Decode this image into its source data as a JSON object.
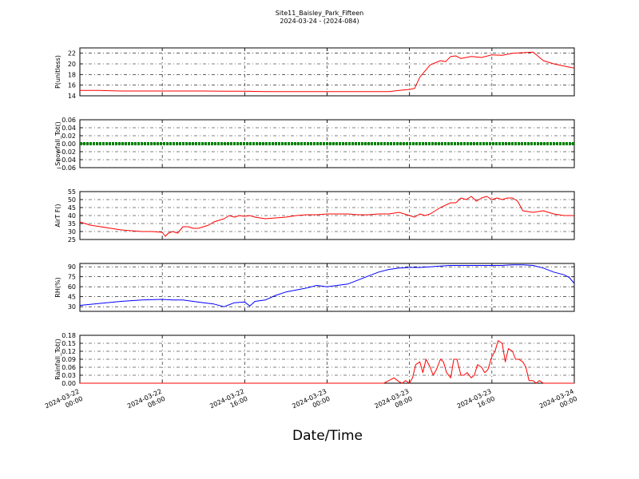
{
  "title": "Site11_Baisley_Park_Fifteen",
  "subtitle": "2024-03-24 - (2024-084)",
  "xlabel": "Date/Time",
  "x_ticks": [
    {
      "t": 0,
      "line1": "2024-03-22",
      "line2": "00:00"
    },
    {
      "t": 8,
      "line1": "2024-03-22",
      "line2": "08:00"
    },
    {
      "t": 16,
      "line1": "2024-03-22",
      "line2": "16:00"
    },
    {
      "t": 24,
      "line1": "2024-03-23",
      "line2": "00:00"
    },
    {
      "t": 32,
      "line1": "2024-03-23",
      "line2": "08:00"
    },
    {
      "t": 40,
      "line1": "2024-03-23",
      "line2": "16:00"
    },
    {
      "t": 48,
      "line1": "2024-03-24",
      "line2": "00:00"
    }
  ],
  "chart_data": [
    {
      "type": "line",
      "ylabel": "P(unitless)",
      "color": "#ff0000",
      "ylim": [
        14,
        23
      ],
      "yticks": [
        14,
        16,
        18,
        20,
        22
      ],
      "tick_labels": [
        "14",
        "16",
        "18",
        "20",
        "22"
      ],
      "x_unit": "hours since 2024-03-22 00:00",
      "x": [
        0,
        2,
        4,
        6,
        8,
        10,
        12,
        14,
        16,
        18,
        20,
        22,
        24,
        26,
        28,
        30,
        31,
        32,
        32.5,
        33,
        34,
        35,
        35.5,
        36,
        36.5,
        37,
        38,
        39,
        40,
        41,
        42,
        43,
        44,
        45,
        46,
        47,
        48
      ],
      "y": [
        15.0,
        15.0,
        14.9,
        14.9,
        14.9,
        14.9,
        14.9,
        14.85,
        14.85,
        14.8,
        14.8,
        14.8,
        14.8,
        14.8,
        14.8,
        14.8,
        15.0,
        15.2,
        15.4,
        17.5,
        19.8,
        20.6,
        20.4,
        21.4,
        21.5,
        21.0,
        21.4,
        21.2,
        21.7,
        21.6,
        22.0,
        22.1,
        22.2,
        20.6,
        20.0,
        19.6,
        19.2
      ]
    },
    {
      "type": "scatter",
      "ylabel": "Snowfall_Tot()",
      "color": "#008000",
      "ylim": [
        -0.06,
        0.06
      ],
      "yticks": [
        -0.06,
        -0.04,
        -0.02,
        0.0,
        0.02,
        0.04,
        0.06
      ],
      "tick_labels": [
        "−0.06",
        "−0.04",
        "−0.02",
        "0.00",
        "0.02",
        "0.04",
        "0.06"
      ],
      "x_unit": "hours since 2024-03-22 00:00",
      "x": [
        0,
        48
      ],
      "y": [
        0,
        0
      ]
    },
    {
      "type": "line",
      "ylabel": "AirT F()",
      "color": "#ff0000",
      "ylim": [
        25,
        55
      ],
      "yticks": [
        25,
        30,
        35,
        40,
        45,
        50,
        55
      ],
      "tick_labels": [
        "25",
        "30",
        "35",
        "40",
        "45",
        "50",
        "55"
      ],
      "x_unit": "hours since 2024-03-22 00:00",
      "x": [
        0,
        1,
        2,
        3,
        4,
        5,
        6,
        7,
        8,
        8.3,
        8.6,
        9,
        9.5,
        10,
        10.5,
        11,
        11.5,
        12,
        12.5,
        13,
        14,
        14.5,
        15,
        15.5,
        16,
        16.5,
        17,
        18,
        19,
        20,
        21,
        22,
        23,
        24,
        25,
        26,
        27,
        28,
        29,
        30,
        31,
        32,
        32.5,
        33,
        33.5,
        34,
        35,
        36,
        36.5,
        37,
        37.5,
        38,
        38.5,
        39,
        39.5,
        40,
        40.5,
        41,
        41.5,
        42,
        42.5,
        43,
        44,
        45,
        46,
        47,
        48
      ],
      "y": [
        36,
        34,
        33,
        32,
        31,
        30.5,
        30,
        30,
        29.5,
        27,
        29,
        30,
        29,
        33,
        33,
        32,
        32,
        33,
        34,
        36,
        38,
        40,
        39,
        40,
        39.5,
        40,
        39,
        38,
        38.5,
        39,
        40,
        40.5,
        40.5,
        41,
        41,
        41,
        40.5,
        40.5,
        41,
        41,
        42,
        40,
        39,
        41,
        40,
        41,
        45,
        48,
        48,
        51,
        50,
        52,
        49,
        51,
        52,
        50,
        51,
        50,
        51,
        51,
        49,
        43,
        42,
        43,
        41,
        40,
        40
      ]
    },
    {
      "type": "line",
      "ylabel": "RH(%)",
      "color": "#0000ff",
      "ylim": [
        23,
        95
      ],
      "yticks": [
        30,
        45,
        60,
        75,
        90
      ],
      "tick_labels": [
        "30",
        "45",
        "60",
        "75",
        "90"
      ],
      "x_unit": "hours since 2024-03-22 00:00",
      "x": [
        0,
        2,
        4,
        6,
        8,
        9,
        10,
        11,
        12,
        13,
        14,
        15,
        16,
        16.5,
        17,
        18,
        19,
        20,
        21,
        22,
        23,
        24,
        25,
        26,
        27,
        28,
        29,
        30,
        31,
        32,
        33,
        34,
        35,
        36,
        37,
        38,
        39,
        40,
        41,
        42,
        43,
        44,
        45,
        46,
        47,
        47.5,
        48
      ],
      "y": [
        32,
        35,
        38,
        40,
        41,
        40,
        40,
        38,
        36,
        34,
        30,
        36,
        37,
        31,
        38,
        40,
        47,
        52,
        55,
        58,
        62,
        60,
        62,
        64,
        70,
        76,
        82,
        86,
        88,
        89,
        89,
        90,
        91,
        92,
        92,
        92,
        92,
        92,
        92,
        93,
        93,
        92,
        88,
        82,
        78,
        74,
        65
      ]
    },
    {
      "type": "line",
      "ylabel": "Rainfall_Tot()",
      "color": "#ff0000",
      "ylim": [
        0,
        0.18
      ],
      "yticks": [
        0.0,
        0.03,
        0.06,
        0.09,
        0.12,
        0.15,
        0.18
      ],
      "tick_labels": [
        "0.00",
        "0.03",
        "0.06",
        "0.09",
        "0.12",
        "0.15",
        "0.18"
      ],
      "x_unit": "hours since 2024-03-22 00:00",
      "x": [
        0,
        10,
        20,
        29.5,
        30,
        30.5,
        31,
        31.3,
        31.6,
        32,
        32.3,
        32.6,
        33,
        33.3,
        33.6,
        34,
        34.3,
        34.6,
        35,
        35.3,
        35.6,
        36,
        36.3,
        36.6,
        37,
        37.3,
        37.6,
        38,
        38.3,
        38.6,
        39,
        39.3,
        39.6,
        40,
        40.3,
        40.6,
        41,
        41.3,
        41.6,
        42,
        42.3,
        42.6,
        43,
        43.3,
        43.6,
        44,
        44.3,
        44.6,
        45,
        46,
        48
      ],
      "y": [
        0,
        0,
        0,
        0,
        0.01,
        0.02,
        0.005,
        0,
        0.01,
        0,
        0.02,
        0.07,
        0.08,
        0.04,
        0.09,
        0.06,
        0.03,
        0.05,
        0.09,
        0.08,
        0.04,
        0.02,
        0.09,
        0.09,
        0.03,
        0.03,
        0.04,
        0.02,
        0.03,
        0.07,
        0.06,
        0.04,
        0.05,
        0.1,
        0.12,
        0.16,
        0.15,
        0.08,
        0.13,
        0.12,
        0.09,
        0.09,
        0.08,
        0.06,
        0.01,
        0.01,
        0,
        0.01,
        0,
        0,
        0
      ]
    }
  ]
}
